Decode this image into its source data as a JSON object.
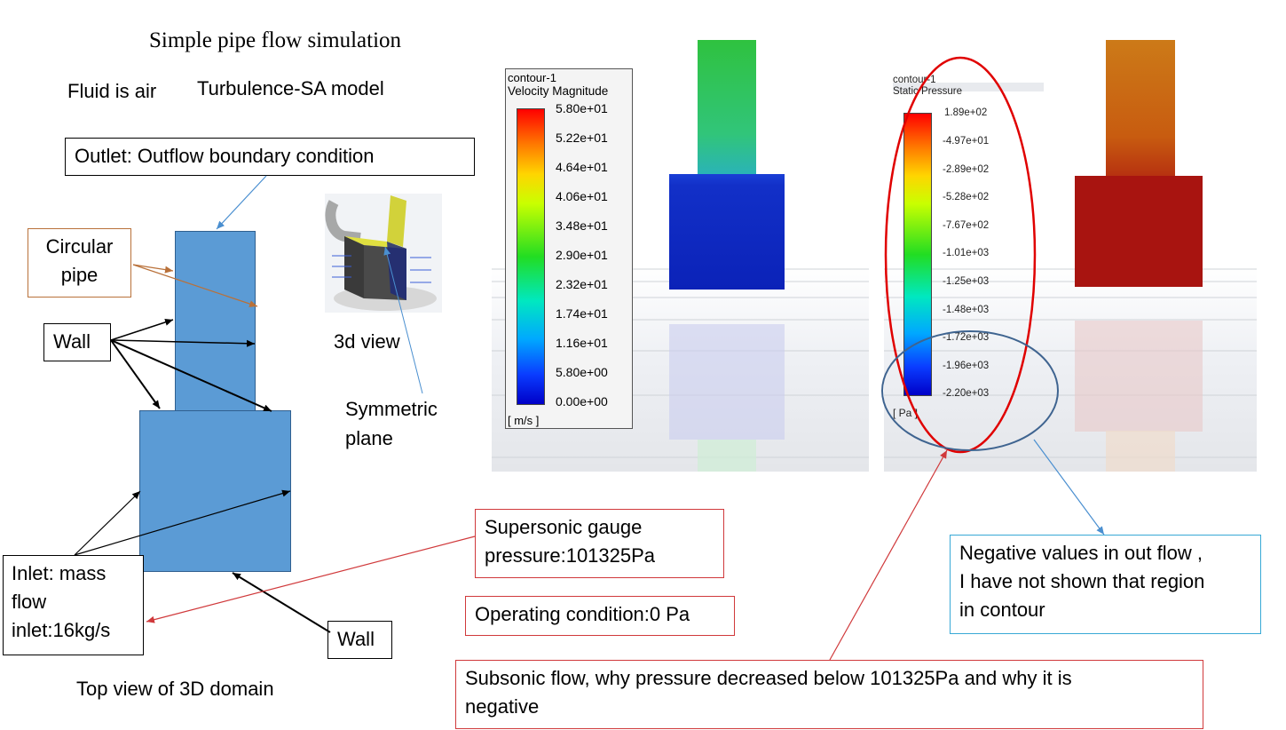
{
  "title": "Simple pipe flow simulation",
  "fluid": "Fluid is air",
  "model": "Turbulence-SA model",
  "labels": {
    "outlet": "Outlet: Outflow boundary condition",
    "circular_pipe_1": "Circular",
    "circular_pipe_2": "pipe",
    "wall_top": "Wall",
    "wall_bottom": "Wall",
    "view3d": "3d view",
    "symmetric_1": "Symmetric",
    "symmetric_2": "plane",
    "inlet_1": "Inlet: mass",
    "inlet_2": "flow",
    "inlet_3": "inlet:16kg/s",
    "top_view": "Top view of 3D domain",
    "supersonic_1": "Supersonic gauge",
    "supersonic_2": "pressure:101325Pa",
    "operating": "Operating condition:0 Pa",
    "negative_1": "Negative values in out flow ,",
    "negative_2": "I have not shown that region",
    "negative_3": "in contour",
    "subsonic_1": "Subsonic flow, why pressure decreased below 101325Pa and why it is",
    "subsonic_2": "negative"
  },
  "velocity_legend": {
    "name": "contour-1",
    "quantity": "Velocity Magnitude",
    "unit": "[ m/s ]",
    "ticks": [
      "5.80e+01",
      "5.22e+01",
      "4.64e+01",
      "4.06e+01",
      "3.48e+01",
      "2.90e+01",
      "2.32e+01",
      "1.74e+01",
      "1.16e+01",
      "5.80e+00",
      "0.00e+00"
    ]
  },
  "pressure_legend": {
    "name": "contour-1",
    "quantity": "Static Pressure",
    "unit": "[ Pa ]",
    "ticks": [
      "1.89e+02",
      "-4.97e+01",
      "-2.89e+02",
      "-5.28e+02",
      "-7.67e+02",
      "-1.01e+03",
      "-1.25e+03",
      "-1.48e+03",
      "-1.72e+03",
      "-1.96e+03",
      "-2.20e+03"
    ]
  },
  "colors": {
    "domain_fill": "#5b9bd5",
    "red_box": "#d0393b",
    "blue_box": "#38a9d6",
    "brown_box": "#b9713a"
  }
}
